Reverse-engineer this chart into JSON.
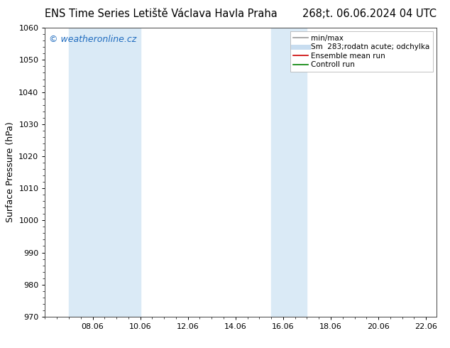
{
  "title_left": "ENS Time Series Letiště Václava Havla Praha",
  "title_right": "268;t. 06.06.2024 04 UTC",
  "ylabel": "Surface Pressure (hPa)",
  "ylim": [
    970,
    1060
  ],
  "yticks": [
    970,
    980,
    990,
    1000,
    1010,
    1020,
    1030,
    1040,
    1050,
    1060
  ],
  "xlim_start": 6.06,
  "xlim_end": 22.5,
  "xticks": [
    8.06,
    10.06,
    12.06,
    14.06,
    16.06,
    18.06,
    20.06,
    22.06
  ],
  "xtick_labels": [
    "08.06",
    "10.06",
    "12.06",
    "14.06",
    "16.06",
    "18.06",
    "20.06",
    "22.06"
  ],
  "shaded_bands": [
    {
      "xmin": 7.06,
      "xmax": 10.06,
      "color": "#daeaf6"
    },
    {
      "xmin": 15.56,
      "xmax": 17.06,
      "color": "#daeaf6"
    }
  ],
  "watermark_text": "© weatheronline.cz",
  "watermark_color": "#1e6bbf",
  "legend_entries": [
    {
      "label": "min/max",
      "color": "#999999",
      "lw": 1.2
    },
    {
      "label": "Sm  283;rodatn acute; odchylka",
      "color": "#c8ddf0",
      "lw": 5
    },
    {
      "label": "Ensemble mean run",
      "color": "#cc0000",
      "lw": 1.2
    },
    {
      "label": "Controll run",
      "color": "#008000",
      "lw": 1.2
    }
  ],
  "bg_color": "#ffffff",
  "plot_bg_color": "#ffffff",
  "title_fontsize": 10.5,
  "axis_fontsize": 9,
  "tick_fontsize": 8,
  "legend_fontsize": 7.5,
  "watermark_fontsize": 9
}
